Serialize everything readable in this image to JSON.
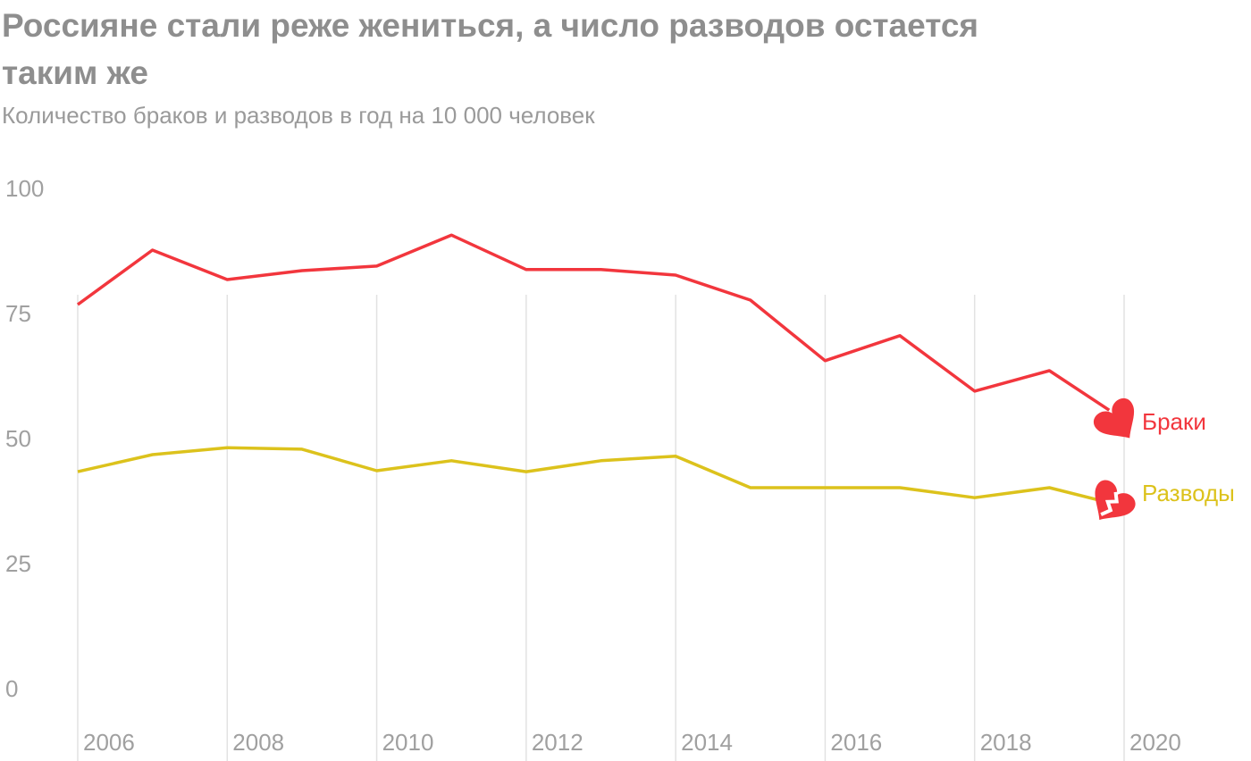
{
  "chart_data": {
    "type": "line",
    "title": "Россияне стали реже жениться, а число разводов остается таким же",
    "subtitle": "Количество браков и разводов в год на 10 000 человек",
    "xlabel": "",
    "ylabel": "",
    "ylim": [
      0,
      100
    ],
    "xlim": [
      2006,
      2020
    ],
    "yticks": [
      "100",
      "75",
      "50",
      "25",
      "0"
    ],
    "ytick_values": [
      100,
      75,
      50,
      25,
      0
    ],
    "xticks": [
      "2006",
      "2008",
      "2010",
      "2012",
      "2014",
      "2016",
      "2018",
      "2020"
    ],
    "xtick_values": [
      2006,
      2008,
      2010,
      2012,
      2014,
      2016,
      2018,
      2020
    ],
    "grid": "vertical",
    "x": [
      2006,
      2007,
      2008,
      2009,
      2010,
      2011,
      2012,
      2013,
      2014,
      2015,
      2016,
      2017,
      2018,
      2019,
      2019.8
    ],
    "series": [
      {
        "name": "Браки",
        "color": "#f2363d",
        "marker": "heart-icon",
        "values": [
          76.6,
          87.5,
          81.6,
          83.4,
          84.3,
          90.5,
          83.6,
          83.6,
          82.5,
          77.5,
          65.4,
          70.4,
          59.3,
          63.4,
          55.5
        ]
      },
      {
        "name": "Разводы",
        "color": "#dcc21c",
        "marker": "broken-heart-icon",
        "values": [
          43.2,
          46.6,
          48.0,
          47.7,
          43.4,
          45.4,
          43.2,
          45.4,
          46.3,
          40.0,
          40.0,
          40.0,
          38.0,
          40.0,
          37.0
        ]
      }
    ],
    "legend": "right-inline"
  }
}
